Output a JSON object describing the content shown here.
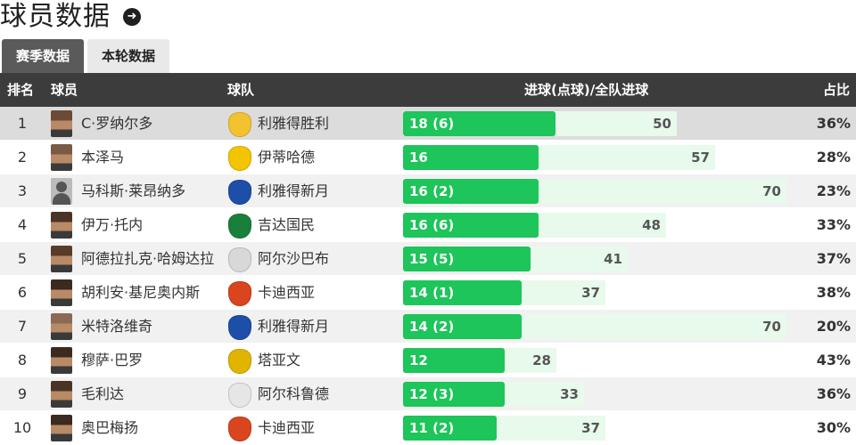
{
  "header": {
    "title": "球员数据",
    "arrow_icon": "arrow-right-circle-icon"
  },
  "tabs": [
    {
      "label": "赛季数据",
      "active": true
    },
    {
      "label": "本轮数据",
      "active": false
    }
  ],
  "table": {
    "columns": {
      "rank": "排名",
      "player": "球员",
      "team": "球队",
      "goals": "进球(点球)/全队进球",
      "pct": "占比"
    },
    "rows": [
      {
        "rank": "1",
        "player": "C·罗纳尔多",
        "team": "利雅得胜利",
        "goals": 18,
        "goals_label": "18 (6)",
        "team_goals": 50,
        "team_goals_label": "50",
        "pct": "36%",
        "crest_color": "#f2c230",
        "avatar_color": "#6a4b36"
      },
      {
        "rank": "2",
        "player": "本泽马",
        "team": "伊蒂哈德",
        "goals": 16,
        "goals_label": "16",
        "team_goals": 57,
        "team_goals_label": "57",
        "pct": "28%",
        "crest_color": "#f3c400",
        "avatar_color": "#7a5a44"
      },
      {
        "rank": "3",
        "player": "马科斯·莱昂纳多",
        "team": "利雅得新月",
        "goals": 16,
        "goals_label": "16 (2)",
        "team_goals": 70,
        "team_goals_label": "70",
        "pct": "23%",
        "crest_color": "#1d4fa8",
        "avatar_color": "silhouette"
      },
      {
        "rank": "4",
        "player": "伊万·托内",
        "team": "吉达国民",
        "goals": 16,
        "goals_label": "16 (6)",
        "team_goals": 48,
        "team_goals_label": "48",
        "pct": "33%",
        "crest_color": "#1b7f3c",
        "avatar_color": "#4b3426"
      },
      {
        "rank": "5",
        "player": "阿德拉扎克·哈姆达拉",
        "team": "阿尔沙巴布",
        "goals": 15,
        "goals_label": "15 (5)",
        "team_goals": 41,
        "team_goals_label": "41",
        "pct": "37%",
        "crest_color": "#d8d8d8",
        "avatar_color": "#5a3b2a"
      },
      {
        "rank": "6",
        "player": "胡利安·基尼奥内斯",
        "team": "卡迪西亚",
        "goals": 14,
        "goals_label": "14 (1)",
        "team_goals": 37,
        "team_goals_label": "37",
        "pct": "38%",
        "crest_color": "#d9451f",
        "avatar_color": "#3a2a20"
      },
      {
        "rank": "7",
        "player": "米特洛维奇",
        "team": "利雅得新月",
        "goals": 14,
        "goals_label": "14 (2)",
        "team_goals": 70,
        "team_goals_label": "70",
        "pct": "20%",
        "crest_color": "#1d4fa8",
        "avatar_color": "#8a6a52"
      },
      {
        "rank": "8",
        "player": "穆萨·巴罗",
        "team": "塔亚文",
        "goals": 12,
        "goals_label": "12",
        "team_goals": 28,
        "team_goals_label": "28",
        "pct": "43%",
        "crest_color": "#e0b400",
        "avatar_color": "#3d2a1e"
      },
      {
        "rank": "9",
        "player": "毛利达",
        "team": "阿尔科鲁德",
        "goals": 12,
        "goals_label": "12 (3)",
        "team_goals": 33,
        "team_goals_label": "33",
        "pct": "36%",
        "crest_color": "#e6e6e6",
        "avatar_color": "#4a3426"
      },
      {
        "rank": "10",
        "player": "奥巴梅扬",
        "team": "卡迪西亚",
        "goals": 11,
        "goals_label": "11 (2)",
        "team_goals": 37,
        "team_goals_label": "37",
        "pct": "30%",
        "crest_color": "#d9451f",
        "avatar_color": "#3b2a1f"
      }
    ]
  },
  "colors": {
    "bar": "#1dc55a",
    "track": "#e7faec",
    "header_bg": "#3c3c3c",
    "accent_tab": "#5a5a5a"
  }
}
